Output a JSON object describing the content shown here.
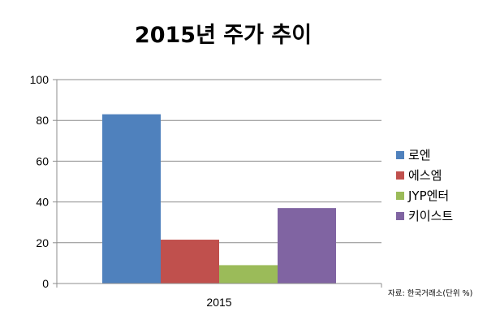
{
  "chart_data": {
    "type": "bar",
    "title": "2015년 주가 추이",
    "categories": [
      "2015"
    ],
    "series": [
      {
        "name": "로엔",
        "values": [
          83
        ],
        "color": "#4f81bd"
      },
      {
        "name": "에스엠",
        "values": [
          21.5
        ],
        "color": "#c0504d"
      },
      {
        "name": "JYP엔터",
        "values": [
          9
        ],
        "color": "#9bbb59"
      },
      {
        "name": "키이스트",
        "values": [
          37
        ],
        "color": "#8064a2"
      }
    ],
    "ylim": [
      0,
      100
    ],
    "yticks": [
      0,
      20,
      40,
      60,
      80,
      100
    ],
    "grid": true,
    "legend_position": "right",
    "source_note": "자료: 한국거래소(단위 %)"
  }
}
